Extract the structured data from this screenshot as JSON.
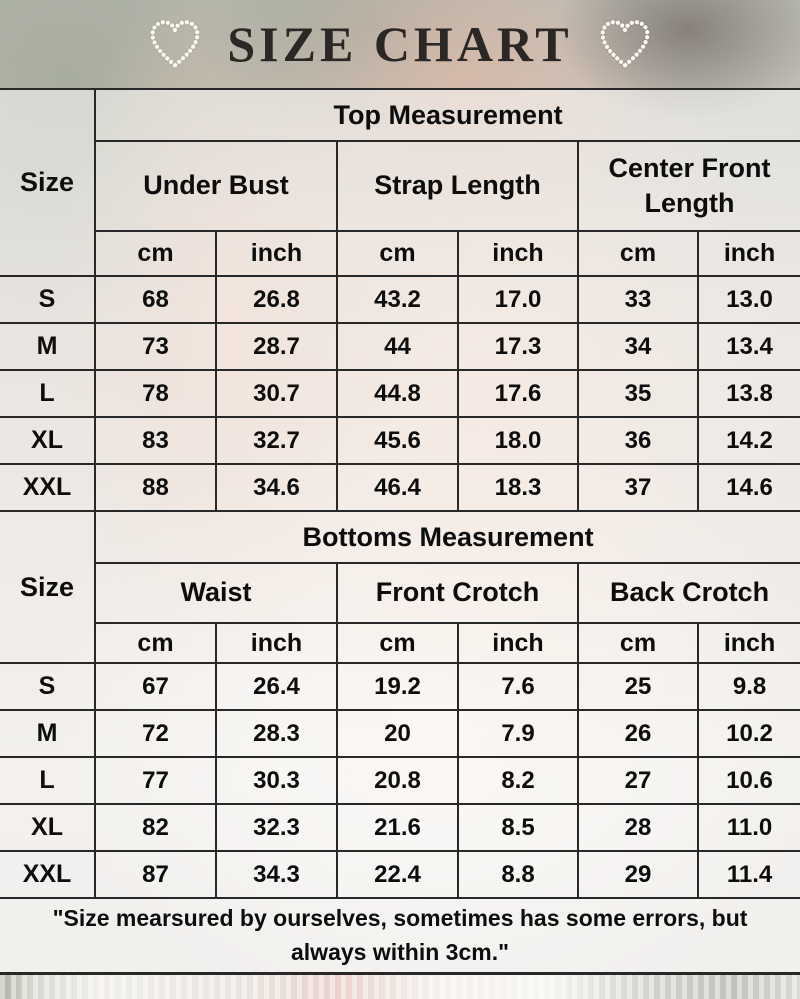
{
  "page_title": "SIZE CHART",
  "decorations": {
    "left_heart": "pearl-heart",
    "right_heart": "pearl-heart"
  },
  "colors": {
    "border": "#282828",
    "text": "#0d0d0d",
    "title": "#2b2724",
    "pearl": "#fdfbf4"
  },
  "footnote": "\"Size mearsured by ourselves, sometimes has some errors, but\nalways within 3cm.\"",
  "chart_data": [
    {
      "type": "table",
      "section_title": "Top Measurement",
      "size_label": "Size",
      "groups": [
        {
          "name": "Under Bust",
          "units": [
            "cm",
            "inch"
          ]
        },
        {
          "name": "Strap Length",
          "units": [
            "cm",
            "inch"
          ]
        },
        {
          "name": "Center Front Length",
          "units": [
            "cm",
            "inch"
          ]
        }
      ],
      "rows": [
        {
          "size": "S",
          "values": [
            "68",
            "26.8",
            "43.2",
            "17.0",
            "33",
            "13.0"
          ]
        },
        {
          "size": "M",
          "values": [
            "73",
            "28.7",
            "44",
            "17.3",
            "34",
            "13.4"
          ]
        },
        {
          "size": "L",
          "values": [
            "78",
            "30.7",
            "44.8",
            "17.6",
            "35",
            "13.8"
          ]
        },
        {
          "size": "XL",
          "values": [
            "83",
            "32.7",
            "45.6",
            "18.0",
            "36",
            "14.2"
          ]
        },
        {
          "size": "XXL",
          "values": [
            "88",
            "34.6",
            "46.4",
            "18.3",
            "37",
            "14.6"
          ]
        }
      ]
    },
    {
      "type": "table",
      "section_title": "Bottoms Measurement",
      "size_label": "Size",
      "groups": [
        {
          "name": "Waist",
          "units": [
            "cm",
            "inch"
          ]
        },
        {
          "name": "Front Crotch",
          "units": [
            "cm",
            "inch"
          ]
        },
        {
          "name": "Back Crotch",
          "units": [
            "cm",
            "inch"
          ]
        }
      ],
      "rows": [
        {
          "size": "S",
          "values": [
            "67",
            "26.4",
            "19.2",
            "7.6",
            "25",
            "9.8"
          ]
        },
        {
          "size": "M",
          "values": [
            "72",
            "28.3",
            "20",
            "7.9",
            "26",
            "10.2"
          ]
        },
        {
          "size": "L",
          "values": [
            "77",
            "30.3",
            "20.8",
            "8.2",
            "27",
            "10.6"
          ]
        },
        {
          "size": "XL",
          "values": [
            "82",
            "32.3",
            "21.6",
            "8.5",
            "28",
            "11.0"
          ]
        },
        {
          "size": "XXL",
          "values": [
            "87",
            "34.3",
            "22.4",
            "8.8",
            "29",
            "11.4"
          ]
        }
      ]
    }
  ]
}
